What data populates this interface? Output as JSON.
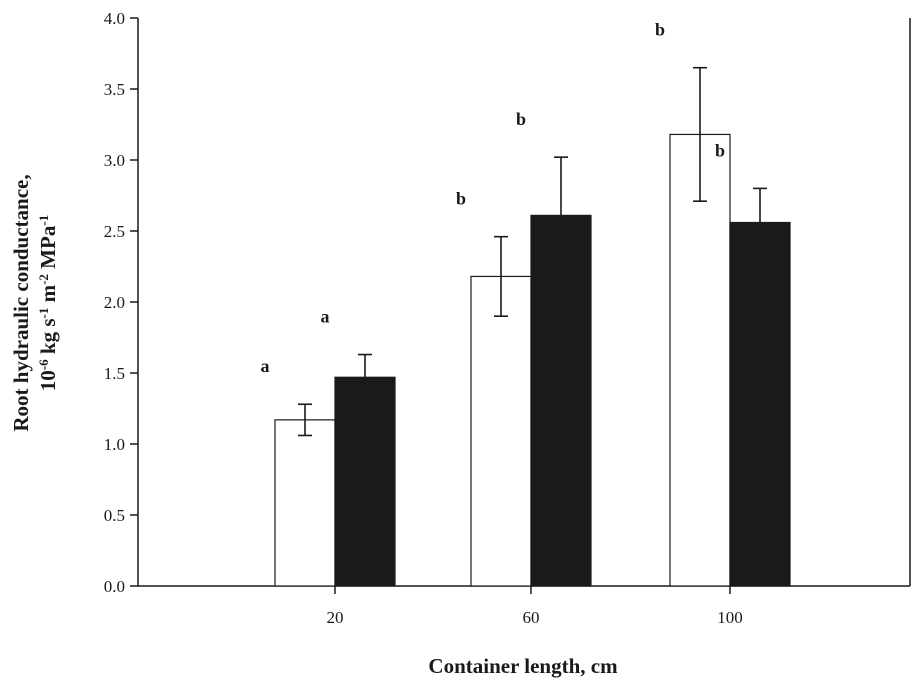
{
  "chart_data": {
    "type": "bar",
    "categories": [
      "20",
      "60",
      "100"
    ],
    "series": [
      {
        "values": [
          1.17,
          2.18,
          3.18
        ],
        "errors": [
          0.11,
          0.28,
          0.47
        ],
        "labels": [
          "a",
          "b",
          "b"
        ],
        "fill": "#ffffff"
      },
      {
        "values": [
          1.47,
          2.61,
          2.56
        ],
        "errors": [
          0.16,
          0.41,
          0.24
        ],
        "labels": [
          "a",
          "b",
          "b"
        ],
        "fill": "#1a1a1a"
      }
    ],
    "xlabel": "Container length, cm",
    "ylabel_line1": "Root hydraulic conductance,",
    "ylabel_line2": {
      "base": "10",
      "exp1": "-6",
      "kg": " kg s",
      "exp2": "-1",
      "m": " m",
      "exp3": "-2",
      "mpa": " MPa",
      "exp4": "-1"
    },
    "ylim": [
      0,
      4.0
    ],
    "yticks": [
      "0.0",
      "0.5",
      "1.0",
      "1.5",
      "2.0",
      "2.5",
      "3.0",
      "3.5",
      "4.0"
    ],
    "grid": false
  }
}
